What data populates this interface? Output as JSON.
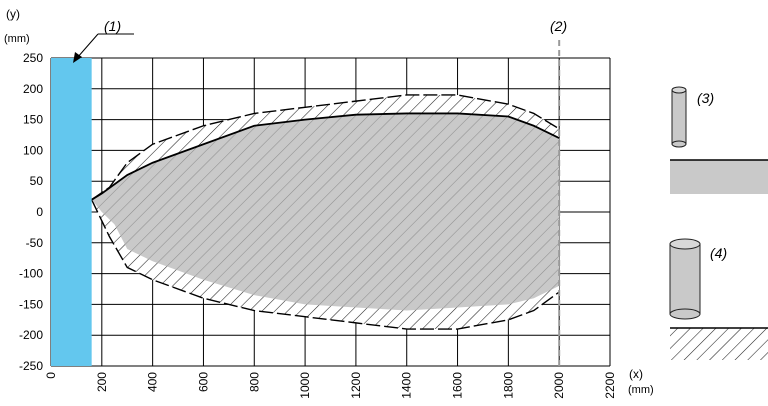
{
  "chart_data": {
    "type": "area",
    "x_unit_label": "(x)",
    "x_unit": "(mm)",
    "y_unit_label": "(y)",
    "y_unit": "(mm)",
    "xlim": [
      0,
      2200
    ],
    "ylim": [
      -250,
      250
    ],
    "x_ticks": [
      "0",
      "200",
      "400",
      "600",
      "800",
      "1000",
      "1200",
      "1400",
      "1600",
      "1800",
      "2000",
      "2200"
    ],
    "y_ticks": [
      "250",
      "200",
      "150",
      "100",
      "50",
      "0",
      "-50",
      "-100",
      "-150",
      "-200",
      "-250"
    ],
    "grid": true,
    "blocked_zone": {
      "x_from": 0,
      "x_to": 160,
      "color": "#63c7ee"
    },
    "limit_line_x": 2000,
    "inner_zone": {
      "upper": [
        [
          160,
          20
        ],
        [
          200,
          30
        ],
        [
          300,
          60
        ],
        [
          400,
          80
        ],
        [
          600,
          110
        ],
        [
          800,
          140
        ],
        [
          1000,
          150
        ],
        [
          1200,
          158
        ],
        [
          1400,
          160
        ],
        [
          1600,
          160
        ],
        [
          1800,
          155
        ],
        [
          1900,
          140
        ],
        [
          2000,
          120
        ]
      ],
      "lower": [
        [
          160,
          20
        ],
        [
          200,
          0
        ],
        [
          250,
          -20
        ],
        [
          300,
          -60
        ],
        [
          400,
          -80
        ],
        [
          600,
          -110
        ],
        [
          800,
          -135
        ],
        [
          1000,
          -150
        ],
        [
          1200,
          -155
        ],
        [
          1400,
          -160
        ],
        [
          1600,
          -155
        ],
        [
          1800,
          -150
        ],
        [
          1900,
          -140
        ],
        [
          2000,
          -120
        ]
      ],
      "color": "#c9c9c9"
    },
    "outer_zone": {
      "upper": [
        [
          160,
          20
        ],
        [
          230,
          40
        ],
        [
          300,
          80
        ],
        [
          400,
          110
        ],
        [
          600,
          140
        ],
        [
          800,
          160
        ],
        [
          1000,
          170
        ],
        [
          1200,
          180
        ],
        [
          1400,
          190
        ],
        [
          1600,
          190
        ],
        [
          1800,
          175
        ],
        [
          1900,
          160
        ],
        [
          2000,
          135
        ]
      ],
      "lower": [
        [
          160,
          20
        ],
        [
          230,
          -40
        ],
        [
          300,
          -90
        ],
        [
          400,
          -110
        ],
        [
          600,
          -140
        ],
        [
          800,
          -160
        ],
        [
          1000,
          -170
        ],
        [
          1200,
          -180
        ],
        [
          1400,
          -190
        ],
        [
          1600,
          -190
        ],
        [
          1800,
          -175
        ],
        [
          1900,
          -160
        ],
        [
          2000,
          -130
        ]
      ]
    },
    "callouts": [
      {
        "id": "1",
        "text": "(1)"
      },
      {
        "id": "2",
        "text": "(2)"
      },
      {
        "id": "3",
        "text": "(3)"
      },
      {
        "id": "4",
        "text": "(4)"
      }
    ]
  },
  "legend": {
    "item3": {
      "label": "(3)",
      "fill": "#c9c9c9"
    },
    "item4": {
      "label": "(4)",
      "fill": "#c9c9c9"
    }
  }
}
